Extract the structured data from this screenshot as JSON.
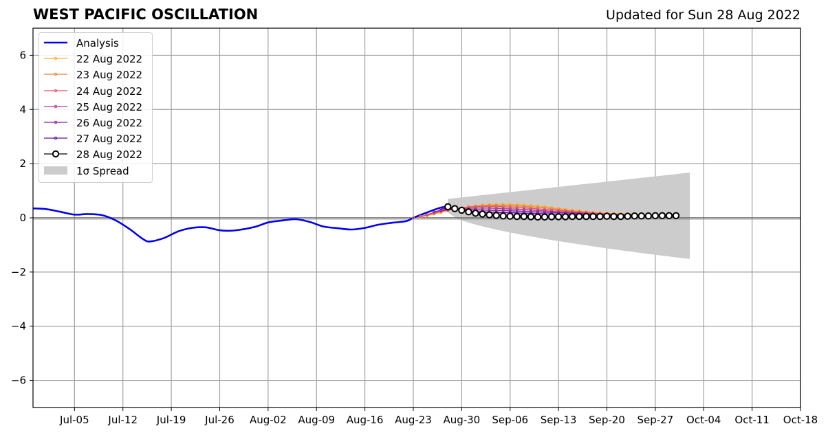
{
  "title": "WEST PACIFIC OSCILLATION",
  "updated": "Updated for Sun 28 Aug 2022",
  "chart_data": {
    "type": "line",
    "title": "WEST PACIFIC OSCILLATION",
    "subtitle": "Updated for Sun 28 Aug 2022",
    "xlabel": "",
    "ylabel": "",
    "x_range": [
      "2022-06-29",
      "2022-10-18"
    ],
    "ylim": [
      -7,
      7
    ],
    "grid": true,
    "legend_position": "top-left",
    "x_ticks": [
      "Jul-05",
      "Jul-12",
      "Jul-19",
      "Jul-26",
      "Aug-02",
      "Aug-09",
      "Aug-16",
      "Aug-23",
      "Aug-30",
      "Sep-06",
      "Sep-13",
      "Sep-20",
      "Sep-27",
      "Oct-04",
      "Oct-11",
      "Oct-18"
    ],
    "x_tick_dates": [
      "2022-07-05",
      "2022-07-12",
      "2022-07-19",
      "2022-07-26",
      "2022-08-02",
      "2022-08-09",
      "2022-08-16",
      "2022-08-23",
      "2022-08-30",
      "2022-09-06",
      "2022-09-13",
      "2022-09-20",
      "2022-09-27",
      "2022-10-04",
      "2022-10-11",
      "2022-10-18"
    ],
    "y_ticks": [
      "−6",
      "−4",
      "−2",
      "0",
      "2",
      "4",
      "6"
    ],
    "y_tick_values": [
      -6,
      -4,
      -2,
      0,
      2,
      4,
      6
    ],
    "analysis": {
      "name": "Analysis",
      "color": "#0000ee",
      "points": [
        [
          "2022-06-29",
          0.35
        ],
        [
          "2022-07-01",
          0.32
        ],
        [
          "2022-07-03",
          0.22
        ],
        [
          "2022-07-05",
          0.12
        ],
        [
          "2022-07-07",
          0.14
        ],
        [
          "2022-07-09",
          0.1
        ],
        [
          "2022-07-11",
          -0.1
        ],
        [
          "2022-07-13",
          -0.42
        ],
        [
          "2022-07-15",
          -0.8
        ],
        [
          "2022-07-16",
          -0.87
        ],
        [
          "2022-07-18",
          -0.74
        ],
        [
          "2022-07-20",
          -0.5
        ],
        [
          "2022-07-22",
          -0.37
        ],
        [
          "2022-07-24",
          -0.35
        ],
        [
          "2022-07-26",
          -0.46
        ],
        [
          "2022-07-28",
          -0.47
        ],
        [
          "2022-07-31",
          -0.34
        ],
        [
          "2022-08-02",
          -0.17
        ],
        [
          "2022-08-04",
          -0.1
        ],
        [
          "2022-08-06",
          -0.05
        ],
        [
          "2022-08-08",
          -0.15
        ],
        [
          "2022-08-10",
          -0.32
        ],
        [
          "2022-08-12",
          -0.38
        ],
        [
          "2022-08-14",
          -0.43
        ],
        [
          "2022-08-16",
          -0.37
        ],
        [
          "2022-08-18",
          -0.25
        ],
        [
          "2022-08-20",
          -0.18
        ],
        [
          "2022-08-22",
          -0.12
        ],
        [
          "2022-08-23",
          0.0
        ],
        [
          "2022-08-25",
          0.2
        ],
        [
          "2022-08-27",
          0.38
        ],
        [
          "2022-08-28",
          0.4
        ]
      ]
    },
    "forecasts": [
      {
        "name": "22 Aug 2022",
        "color": "#f9b233",
        "start": "2022-08-23",
        "days": 34,
        "values": [
          0.0,
          0.03,
          0.08,
          0.14,
          0.2,
          0.26,
          0.32,
          0.37,
          0.41,
          0.44,
          0.47,
          0.49,
          0.5,
          0.5,
          0.5,
          0.49,
          0.48,
          0.46,
          0.44,
          0.41,
          0.38,
          0.35,
          0.32,
          0.29,
          0.26,
          0.23,
          0.21,
          0.19,
          0.17,
          0.16,
          0.15,
          0.14,
          0.13,
          0.12,
          0.12
        ]
      },
      {
        "name": "23 Aug 2022",
        "color": "#f0813c",
        "start": "2022-08-23",
        "days": 34,
        "values": [
          0.0,
          0.04,
          0.1,
          0.16,
          0.22,
          0.28,
          0.33,
          0.37,
          0.4,
          0.43,
          0.45,
          0.46,
          0.46,
          0.46,
          0.45,
          0.44,
          0.43,
          0.41,
          0.39,
          0.37,
          0.34,
          0.31,
          0.28,
          0.25,
          0.23,
          0.21,
          0.19,
          0.17,
          0.16,
          0.15,
          0.14,
          0.13,
          0.12,
          0.12,
          0.11
        ]
      },
      {
        "name": "24 Aug 2022",
        "color": "#e0566b",
        "start": "2022-08-24",
        "days": 33,
        "values": [
          0.05,
          0.12,
          0.19,
          0.25,
          0.3,
          0.34,
          0.37,
          0.39,
          0.41,
          0.42,
          0.42,
          0.42,
          0.41,
          0.4,
          0.39,
          0.37,
          0.35,
          0.33,
          0.31,
          0.29,
          0.27,
          0.25,
          0.23,
          0.21,
          0.19,
          0.17,
          0.16,
          0.15,
          0.14,
          0.13,
          0.12,
          0.11,
          0.11,
          0.1
        ]
      },
      {
        "name": "25 Aug 2022",
        "color": "#b8388f",
        "start": "2022-08-25",
        "days": 32,
        "values": [
          0.12,
          0.19,
          0.25,
          0.29,
          0.32,
          0.34,
          0.35,
          0.36,
          0.36,
          0.36,
          0.35,
          0.34,
          0.33,
          0.32,
          0.31,
          0.29,
          0.27,
          0.26,
          0.24,
          0.22,
          0.21,
          0.19,
          0.18,
          0.16,
          0.15,
          0.14,
          0.13,
          0.12,
          0.11,
          0.1,
          0.1,
          0.09,
          0.09
        ]
      },
      {
        "name": "26 Aug 2022",
        "color": "#8a1fa8",
        "start": "2022-08-26",
        "days": 31,
        "values": [
          0.22,
          0.28,
          0.32,
          0.33,
          0.32,
          0.31,
          0.3,
          0.29,
          0.28,
          0.27,
          0.27,
          0.26,
          0.25,
          0.24,
          0.23,
          0.22,
          0.21,
          0.2,
          0.19,
          0.18,
          0.17,
          0.16,
          0.15,
          0.14,
          0.13,
          0.12,
          0.11,
          0.1,
          0.1,
          0.09,
          0.09,
          0.08
        ]
      },
      {
        "name": "27 Aug 2022",
        "color": "#5a0fa6",
        "start": "2022-08-27",
        "days": 30,
        "values": [
          0.33,
          0.34,
          0.31,
          0.28,
          0.25,
          0.23,
          0.22,
          0.21,
          0.2,
          0.19,
          0.19,
          0.18,
          0.17,
          0.17,
          0.16,
          0.15,
          0.15,
          0.14,
          0.13,
          0.13,
          0.12,
          0.11,
          0.11,
          0.1,
          0.1,
          0.09,
          0.09,
          0.08,
          0.08,
          0.08,
          0.07
        ]
      }
    ],
    "main_forecast": {
      "name": "28 Aug 2022",
      "color": "#000000",
      "start": "2022-08-28",
      "values": [
        0.41,
        0.34,
        0.28,
        0.22,
        0.17,
        0.14,
        0.11,
        0.09,
        0.07,
        0.06,
        0.05,
        0.05,
        0.04,
        0.03,
        0.03,
        0.04,
        0.04,
        0.04,
        0.05,
        0.05,
        0.05,
        0.05,
        0.05,
        0.06,
        0.05,
        0.05,
        0.06,
        0.07,
        0.07,
        0.07,
        0.08,
        0.08,
        0.08,
        0.08
      ]
    },
    "spread": {
      "name": "1σ Spread",
      "color": "#cccccc",
      "start": "2022-08-28",
      "end": "2022-10-02",
      "upper_start": 0.7,
      "upper_end": 1.67,
      "lower_start": 0.2,
      "lower_end": -1.52
    }
  },
  "legend": {
    "entries": [
      {
        "label": "Analysis",
        "color": "#0000ee",
        "kind": "thick-line"
      },
      {
        "label": "22 Aug 2022",
        "color": "#f9b233",
        "kind": "small-marker"
      },
      {
        "label": "23 Aug 2022",
        "color": "#f0813c",
        "kind": "small-marker"
      },
      {
        "label": "24 Aug 2022",
        "color": "#e0566b",
        "kind": "small-marker"
      },
      {
        "label": "25 Aug 2022",
        "color": "#b8388f",
        "kind": "small-marker"
      },
      {
        "label": "26 Aug 2022",
        "color": "#8a1fa8",
        "kind": "small-marker"
      },
      {
        "label": "27 Aug 2022",
        "color": "#5a0fa6",
        "kind": "small-marker"
      },
      {
        "label": "28 Aug 2022",
        "color": "#000000",
        "kind": "big-marker"
      },
      {
        "label": "1σ Spread",
        "color": "#cccccc",
        "kind": "patch"
      }
    ]
  }
}
